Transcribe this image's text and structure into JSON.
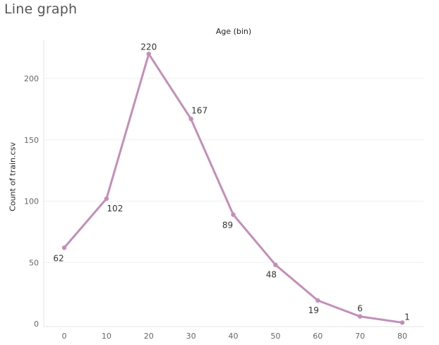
{
  "chart_data": {
    "type": "line",
    "title": "Line graph",
    "xlabel": "Age (bin)",
    "ylabel": "Count of train.csv",
    "x": [
      0,
      10,
      20,
      30,
      40,
      50,
      60,
      70,
      80
    ],
    "values": [
      62,
      102,
      220,
      167,
      89,
      48,
      19,
      6,
      1
    ],
    "x_ticks": [
      "0",
      "10",
      "20",
      "30",
      "40",
      "50",
      "60",
      "70",
      "80"
    ],
    "y_ticks": [
      "0",
      "50",
      "100",
      "150",
      "200"
    ],
    "ylim": [
      0,
      230
    ],
    "grid": true,
    "line_color": "#C28FB8",
    "data_labels": [
      "62",
      "102",
      "220",
      "167",
      "89",
      "48",
      "19",
      "6",
      "1"
    ],
    "x_axis_position": "top"
  }
}
